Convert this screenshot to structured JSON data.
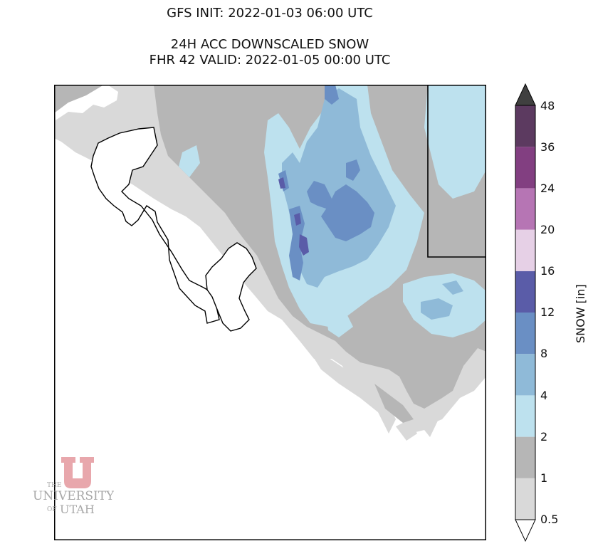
{
  "titles": {
    "init": "GFS INIT: 2022-01-03 06:00 UTC",
    "product": "24H ACC DOWNSCALED SNOW",
    "valid": "FHR 42 VALID: 2022-01-05 00:00 UTC"
  },
  "colorbar": {
    "label": "SNOW [in]",
    "ticks": [
      "0.5",
      "1",
      "2",
      "4",
      "8",
      "12",
      "16",
      "20",
      "24",
      "36",
      "48"
    ],
    "colors": [
      "#d9d9d9",
      "#b6b6b6",
      "#bde1ee",
      "#8fbad8",
      "#6a8fc4",
      "#5a5ca8",
      "#e6d0e6",
      "#b675b4",
      "#823f81",
      "#5c3a60",
      "#404040"
    ],
    "extend": "both"
  },
  "map": {
    "colors": {
      "background": "#ffffff",
      "lake_outline": "#000000",
      "boundary": "#000000"
    }
  },
  "logo": {
    "line1": "THE",
    "line2": "UNIVERSITY",
    "line3": "OF",
    "line4": "UTAH",
    "emblem_color": "#e8a7ac"
  }
}
